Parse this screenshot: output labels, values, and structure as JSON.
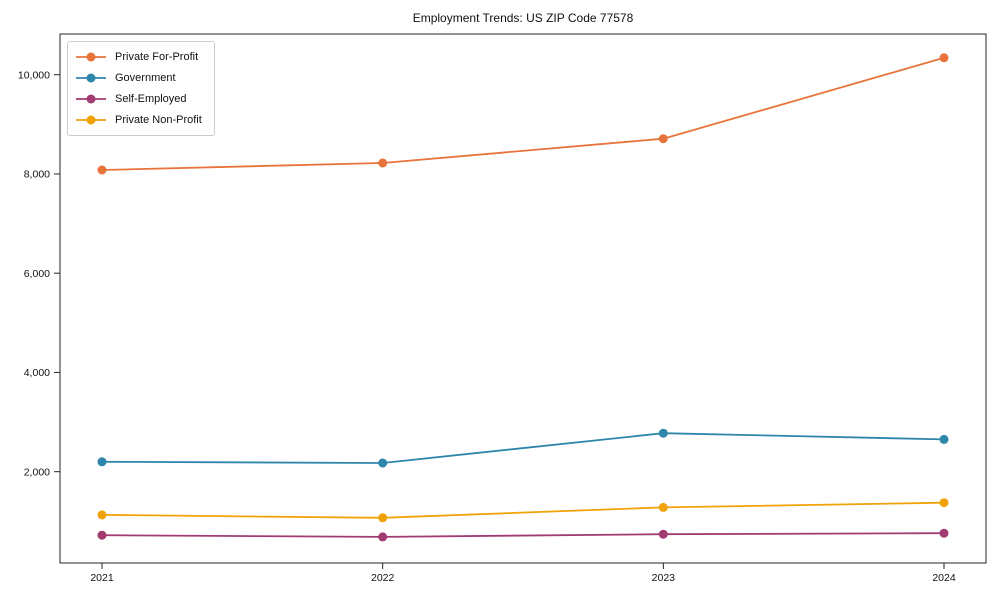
{
  "chart_data": {
    "type": "line",
    "title": "Employment Trends: US ZIP Code 77578",
    "xlabel": "",
    "ylabel": "",
    "categories": [
      "2021",
      "2022",
      "2023",
      "2024"
    ],
    "series": [
      {
        "name": "Private For-Profit",
        "color": "#e8743b",
        "values": [
          8080,
          8220,
          8710,
          10340
        ]
      },
      {
        "name": "Government",
        "color": "#2e86ab",
        "values": [
          2200,
          2175,
          2775,
          2650
        ]
      },
      {
        "name": "Self-Employed",
        "color": "#a23b72",
        "values": [
          720,
          685,
          740,
          760
        ]
      },
      {
        "name": "Private Non-Profit",
        "color": "#f1a208",
        "values": [
          1130,
          1070,
          1280,
          1375
        ]
      }
    ],
    "ylim": [
      160,
      10820
    ],
    "yticks": [
      2000,
      4000,
      6000,
      8000,
      10000
    ],
    "ytick_labels": [
      "2,000",
      "4,000",
      "6,000",
      "8,000",
      "10,000"
    ],
    "grid": false,
    "legend_position": "upper-left",
    "marker": "circle",
    "axis_color": "#262626",
    "text_color": "#111111"
  }
}
